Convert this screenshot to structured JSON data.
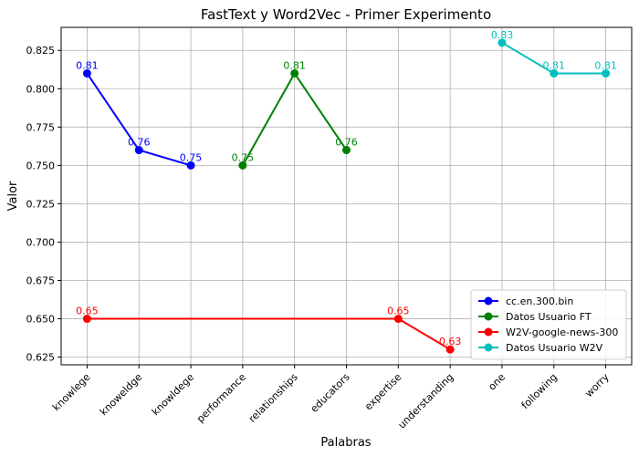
{
  "chart_data": {
    "type": "line",
    "title": "FastText y Word2Vec - Primer Experimento",
    "xlabel": "Palabras",
    "ylabel": "Valor",
    "categories": [
      "knowlege",
      "knoweldge",
      "knowldege",
      "performance",
      "relationships",
      "educators",
      "expertise",
      "understanding",
      "one",
      "following",
      "worry"
    ],
    "ylim": [
      0.62,
      0.84
    ],
    "yticks": [
      0.625,
      0.65,
      0.675,
      0.7,
      0.725,
      0.75,
      0.775,
      0.8,
      0.825
    ],
    "ytick_labels": [
      "0.625",
      "0.650",
      "0.675",
      "0.700",
      "0.725",
      "0.750",
      "0.775",
      "0.800",
      "0.825"
    ],
    "grid": true,
    "legend_position": "lower-right",
    "series": [
      {
        "name": "cc.en.300.bin",
        "color": "#0000ff",
        "points": [
          {
            "x": "knowlege",
            "y": 0.81,
            "label": "0.81"
          },
          {
            "x": "knoweldge",
            "y": 0.76,
            "label": "0.76"
          },
          {
            "x": "knowldege",
            "y": 0.75,
            "label": "0.75"
          }
        ]
      },
      {
        "name": "Datos Usuario FT",
        "color": "#008000",
        "points": [
          {
            "x": "performance",
            "y": 0.75,
            "label": "0.75"
          },
          {
            "x": "relationships",
            "y": 0.81,
            "label": "0.81"
          },
          {
            "x": "educators",
            "y": 0.76,
            "label": "0.76"
          }
        ]
      },
      {
        "name": "W2V-google-news-300",
        "color": "#ff0000",
        "points": [
          {
            "x": "knowlege",
            "y": 0.65,
            "label": "0.65"
          },
          {
            "x": "expertise",
            "y": 0.65,
            "label": "0.65"
          },
          {
            "x": "understanding",
            "y": 0.63,
            "label": "0.63"
          }
        ]
      },
      {
        "name": "Datos Usuario W2V",
        "color": "#00bfbf",
        "points": [
          {
            "x": "one",
            "y": 0.83,
            "label": "0.83"
          },
          {
            "x": "following",
            "y": 0.81,
            "label": "0.81"
          },
          {
            "x": "worry",
            "y": 0.81,
            "label": "0.81"
          }
        ]
      }
    ]
  }
}
